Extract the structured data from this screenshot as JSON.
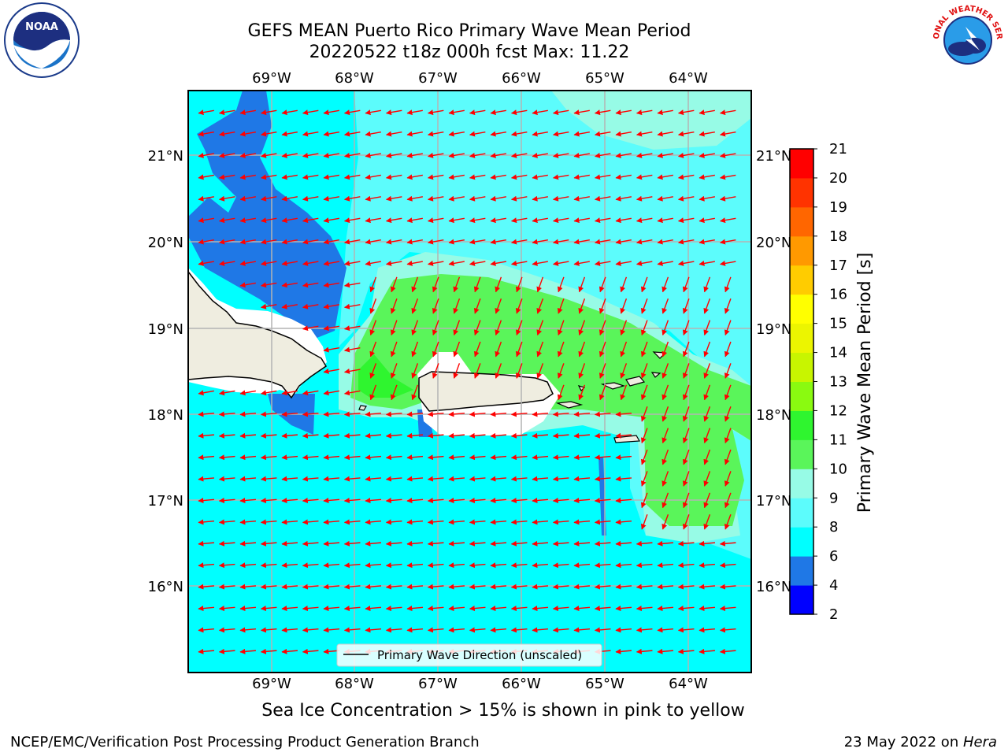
{
  "title": {
    "line1": "GEFS MEAN Puerto Rico Primary Wave Mean Period",
    "line2": "20220522 t18z 000h fcst   Max: 11.22"
  },
  "logos": {
    "left": {
      "icon": "noaa-logo",
      "text": "NOAA"
    },
    "right": {
      "icon": "nws-logo",
      "text": "NATIONAL WEATHER SERVICE"
    }
  },
  "axes": {
    "lon_labels": [
      "69°W",
      "68°W",
      "67°W",
      "66°W",
      "65°W",
      "64°W"
    ],
    "lat_labels": [
      "21°N",
      "20°N",
      "19°N",
      "18°N",
      "17°N",
      "16°N"
    ]
  },
  "legend": {
    "label": "Primary Wave Direction (unscaled)"
  },
  "colorbar": {
    "label": "Primary Wave Mean Period [s]",
    "ticks": [
      "2",
      "4",
      "6",
      "8",
      "9",
      "10",
      "11",
      "12",
      "13",
      "14",
      "15",
      "16",
      "17",
      "18",
      "19",
      "20",
      "21"
    ],
    "colors": [
      "#0000ff",
      "#1f78e6",
      "#00ffff",
      "#5cfcfc",
      "#97fbe6",
      "#5af55a",
      "#2ff52f",
      "#8afa10",
      "#c8f500",
      "#ecf500",
      "#ffff00",
      "#ffcc00",
      "#ff9900",
      "#ff6600",
      "#ff3300",
      "#ff0000"
    ]
  },
  "colors": {
    "land": "#efede0",
    "coast": "#000000",
    "grid": "#b4b4b4",
    "arrow": "#ff0000",
    "frame": "#000000"
  },
  "subtitle": "Sea Ice Concentration > 15% is shown in pink to yellow",
  "footer": {
    "left": "NCEP/EMC/Verification Post Processing Product Generation Branch",
    "right_prefix": "23 May 2022 on ",
    "right_machine": "Hera"
  }
}
